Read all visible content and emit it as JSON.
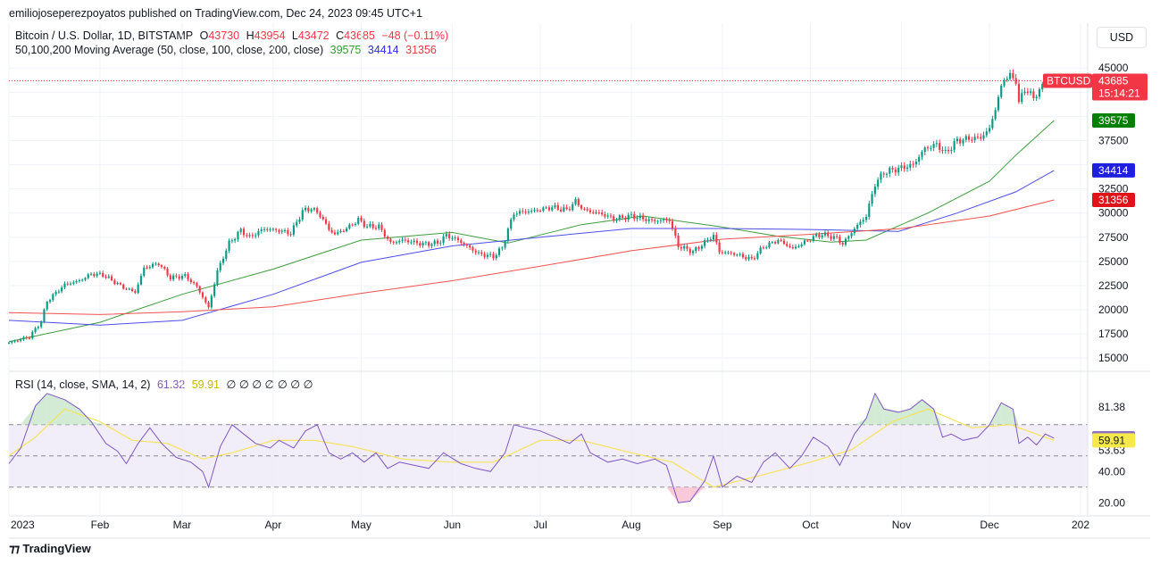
{
  "header": {
    "publisher": "emiliojoseperezpoyatos published on TradingView.com, Dec 24, 2023 09:45 UTC+1"
  },
  "legend": {
    "symbol": "Bitcoin / U.S. Dollar, 1D, BITSTAMP",
    "open_label": "O",
    "open": "43730",
    "high_label": "H",
    "high": "43954",
    "low_label": "L",
    "low": "43472",
    "close_label": "C",
    "close": "43685",
    "change": "−48 (−0.11%)",
    "ma_title": "50,100,200 Moving Average (50, close, 100, close, 200, close)",
    "ma50": "39575",
    "ma100": "34414",
    "ma200": "31356",
    "rsi_title": "RSI (14, close, SMA, 14, 2)",
    "rsi_value": "61.32",
    "rsi_sma": "59.91",
    "na_values": "∅ ∅ ∅ ∅ ∅ ∅ ∅"
  },
  "currency_button": "USD",
  "price_badge": {
    "ticker": "BTCUSD",
    "price": "43685",
    "countdown": "15:14:21"
  },
  "footer": {
    "brand": "TradingView"
  },
  "colors": {
    "up": "#089981",
    "down": "#f23645",
    "ma50": "#3d9c3d",
    "ma100": "#4d4de8",
    "ma200": "#f0534f",
    "rsi": "#7e57c2",
    "rsi_sma": "#f5e35c",
    "rsi_band": "#ede7f6"
  },
  "chart_data": [
    {
      "type": "candlestick",
      "title": "Bitcoin / U.S. Dollar, 1D, BITSTAMP",
      "x_ticks": [
        "2023",
        "Feb",
        "Mar",
        "Apr",
        "May",
        "Jun",
        "Jul",
        "Aug",
        "Sep",
        "Oct",
        "Nov",
        "Dec",
        "202"
      ],
      "y_ticks": [
        "45000",
        "37500",
        "32500",
        "30000",
        "27500",
        "25000",
        "22500",
        "20000",
        "17500",
        "15000"
      ],
      "ylim": [
        14000,
        46500
      ],
      "y_scale": "linear",
      "price_close_path": [
        [
          "2023-01-01",
          16600
        ],
        [
          "2023-01-08",
          17200
        ],
        [
          "2023-01-12",
          18800
        ],
        [
          "2023-01-14",
          20900
        ],
        [
          "2023-01-20",
          22600
        ],
        [
          "2023-01-25",
          23000
        ],
        [
          "2023-01-29",
          23700
        ],
        [
          "2023-02-02",
          23600
        ],
        [
          "2023-02-09",
          22300
        ],
        [
          "2023-02-13",
          21800
        ],
        [
          "2023-02-16",
          24300
        ],
        [
          "2023-02-21",
          24800
        ],
        [
          "2023-02-25",
          23300
        ],
        [
          "2023-03-02",
          23500
        ],
        [
          "2023-03-06",
          22400
        ],
        [
          "2023-03-10",
          20200
        ],
        [
          "2023-03-13",
          24000
        ],
        [
          "2023-03-17",
          26900
        ],
        [
          "2023-03-21",
          28200
        ],
        [
          "2023-03-24",
          27500
        ],
        [
          "2023-03-29",
          28400
        ],
        [
          "2023-04-03",
          28200
        ],
        [
          "2023-04-07",
          27900
        ],
        [
          "2023-04-11",
          30200
        ],
        [
          "2023-04-14",
          30500
        ],
        [
          "2023-04-17",
          29800
        ],
        [
          "2023-04-20",
          28300
        ],
        [
          "2023-04-22",
          27800
        ],
        [
          "2023-04-26",
          28400
        ],
        [
          "2023-04-30",
          29300
        ],
        [
          "2023-05-03",
          28600
        ],
        [
          "2023-05-07",
          28600
        ],
        [
          "2023-05-11",
          26900
        ],
        [
          "2023-05-15",
          27200
        ],
        [
          "2023-05-22",
          26800
        ],
        [
          "2023-05-27",
          26900
        ],
        [
          "2023-05-30",
          27700
        ],
        [
          "2023-06-03",
          27200
        ],
        [
          "2023-06-06",
          26600
        ],
        [
          "2023-06-10",
          25800
        ],
        [
          "2023-06-15",
          25500
        ],
        [
          "2023-06-18",
          26400
        ],
        [
          "2023-06-20",
          28300
        ],
        [
          "2023-06-22",
          30000
        ],
        [
          "2023-06-28",
          30200
        ],
        [
          "2023-07-05",
          30600
        ],
        [
          "2023-07-10",
          30300
        ],
        [
          "2023-07-13",
          31200
        ],
        [
          "2023-07-16",
          30300
        ],
        [
          "2023-07-22",
          29900
        ],
        [
          "2023-07-26",
          29400
        ],
        [
          "2023-08-01",
          29700
        ],
        [
          "2023-08-08",
          29200
        ],
        [
          "2023-08-14",
          29300
        ],
        [
          "2023-08-17",
          26600
        ],
        [
          "2023-08-22",
          26000
        ],
        [
          "2023-08-29",
          27700
        ],
        [
          "2023-08-31",
          26000
        ],
        [
          "2023-09-05",
          25800
        ],
        [
          "2023-09-11",
          25200
        ],
        [
          "2023-09-15",
          26500
        ],
        [
          "2023-09-20",
          27200
        ],
        [
          "2023-09-25",
          26300
        ],
        [
          "2023-09-29",
          27000
        ],
        [
          "2023-10-02",
          27500
        ],
        [
          "2023-10-05",
          27800
        ],
        [
          "2023-10-10",
          27400
        ],
        [
          "2023-10-12",
          26800
        ],
        [
          "2023-10-16",
          28400
        ],
        [
          "2023-10-20",
          29700
        ],
        [
          "2023-10-23",
          33000
        ],
        [
          "2023-10-26",
          34200
        ],
        [
          "2023-10-31",
          34600
        ],
        [
          "2023-11-05",
          35000
        ],
        [
          "2023-11-09",
          36700
        ],
        [
          "2023-11-13",
          37100
        ],
        [
          "2023-11-16",
          36200
        ],
        [
          "2023-11-20",
          37500
        ],
        [
          "2023-11-24",
          37700
        ],
        [
          "2023-11-28",
          37800
        ],
        [
          "2023-12-01",
          38700
        ],
        [
          "2023-12-04",
          41900
        ],
        [
          "2023-12-06",
          44000
        ],
        [
          "2023-12-08",
          44100
        ],
        [
          "2023-12-10",
          43800
        ],
        [
          "2023-12-11",
          41300
        ],
        [
          "2023-12-13",
          42900
        ],
        [
          "2023-12-16",
          41900
        ],
        [
          "2023-12-18",
          42700
        ],
        [
          "2023-12-20",
          43700
        ],
        [
          "2023-12-23",
          43685
        ]
      ],
      "series": [
        {
          "name": "50",
          "values": [
            [
              "2023-01-01",
              16700
            ],
            [
              "2023-02-01",
              18700
            ],
            [
              "2023-03-01",
              21600
            ],
            [
              "2023-04-01",
              24200
            ],
            [
              "2023-05-01",
              27200
            ],
            [
              "2023-06-01",
              28000
            ],
            [
              "2023-06-20",
              26900
            ],
            [
              "2023-07-15",
              28800
            ],
            [
              "2023-08-05",
              29700
            ],
            [
              "2023-08-31",
              28600
            ],
            [
              "2023-09-20",
              27600
            ],
            [
              "2023-10-08",
              27000
            ],
            [
              "2023-10-20",
              27200
            ],
            [
              "2023-11-10",
              30000
            ],
            [
              "2023-12-01",
              33300
            ],
            [
              "2023-12-10",
              36000
            ],
            [
              "2023-12-23",
              39575
            ]
          ]
        },
        {
          "name": "100",
          "values": [
            [
              "2023-01-01",
              18900
            ],
            [
              "2023-02-01",
              18400
            ],
            [
              "2023-03-01",
              18900
            ],
            [
              "2023-04-01",
              21600
            ],
            [
              "2023-05-01",
              24900
            ],
            [
              "2023-06-01",
              26600
            ],
            [
              "2023-07-01",
              27500
            ],
            [
              "2023-08-01",
              28400
            ],
            [
              "2023-09-01",
              28400
            ],
            [
              "2023-10-01",
              28300
            ],
            [
              "2023-10-31",
              28100
            ],
            [
              "2023-11-20",
              30000
            ],
            [
              "2023-12-10",
              32200
            ],
            [
              "2023-12-23",
              34414
            ]
          ]
        },
        {
          "name": "200",
          "values": [
            [
              "2023-01-01",
              19700
            ],
            [
              "2023-02-01",
              19500
            ],
            [
              "2023-03-01",
              19800
            ],
            [
              "2023-04-01",
              20300
            ],
            [
              "2023-05-01",
              21700
            ],
            [
              "2023-06-01",
              23000
            ],
            [
              "2023-07-01",
              24500
            ],
            [
              "2023-08-01",
              26100
            ],
            [
              "2023-09-01",
              27300
            ],
            [
              "2023-10-01",
              27800
            ],
            [
              "2023-11-01",
              28400
            ],
            [
              "2023-12-01",
              29700
            ],
            [
              "2023-12-23",
              31356
            ]
          ]
        }
      ]
    },
    {
      "type": "line",
      "title": "RSI (14, close, SMA, 14, 2)",
      "y_ticks": [
        "81.38",
        "61.32",
        "59.91",
        "53.63",
        "40.00",
        "20.00"
      ],
      "ylim": [
        15,
        95
      ],
      "bands": {
        "upper": 70,
        "middle": 50,
        "lower": 30
      },
      "series": [
        {
          "name": "RSI",
          "values": [
            [
              "2023-01-01",
              45
            ],
            [
              "2023-01-05",
              55
            ],
            [
              "2023-01-10",
              82
            ],
            [
              "2023-01-14",
              90
            ],
            [
              "2023-01-20",
              86
            ],
            [
              "2023-01-25",
              80
            ],
            [
              "2023-01-29",
              72
            ],
            [
              "2023-02-03",
              58
            ],
            [
              "2023-02-07",
              53
            ],
            [
              "2023-02-10",
              45
            ],
            [
              "2023-02-14",
              58
            ],
            [
              "2023-02-18",
              68
            ],
            [
              "2023-02-22",
              58
            ],
            [
              "2023-02-27",
              49
            ],
            [
              "2023-03-04",
              46
            ],
            [
              "2023-03-08",
              40
            ],
            [
              "2023-03-10",
              30
            ],
            [
              "2023-03-14",
              56
            ],
            [
              "2023-03-18",
              70
            ],
            [
              "2023-03-22",
              64
            ],
            [
              "2023-03-26",
              58
            ],
            [
              "2023-03-31",
              55
            ],
            [
              "2023-04-03",
              60
            ],
            [
              "2023-04-08",
              55
            ],
            [
              "2023-04-12",
              66
            ],
            [
              "2023-04-16",
              70
            ],
            [
              "2023-04-20",
              52
            ],
            [
              "2023-04-24",
              48
            ],
            [
              "2023-04-28",
              52
            ],
            [
              "2023-05-02",
              46
            ],
            [
              "2023-05-06",
              52
            ],
            [
              "2023-05-10",
              42
            ],
            [
              "2023-05-14",
              46
            ],
            [
              "2023-05-19",
              44
            ],
            [
              "2023-05-24",
              42
            ],
            [
              "2023-05-29",
              52
            ],
            [
              "2023-06-04",
              45
            ],
            [
              "2023-06-09",
              42
            ],
            [
              "2023-06-14",
              40
            ],
            [
              "2023-06-19",
              52
            ],
            [
              "2023-06-22",
              70
            ],
            [
              "2023-06-26",
              68
            ],
            [
              "2023-07-01",
              66
            ],
            [
              "2023-07-06",
              62
            ],
            [
              "2023-07-11",
              58
            ],
            [
              "2023-07-15",
              64
            ],
            [
              "2023-07-18",
              52
            ],
            [
              "2023-07-24",
              46
            ],
            [
              "2023-07-29",
              48
            ],
            [
              "2023-08-03",
              45
            ],
            [
              "2023-08-09",
              48
            ],
            [
              "2023-08-13",
              44
            ],
            [
              "2023-08-17",
              20
            ],
            [
              "2023-08-21",
              21
            ],
            [
              "2023-08-26",
              34
            ],
            [
              "2023-08-29",
              50
            ],
            [
              "2023-09-01",
              30
            ],
            [
              "2023-09-06",
              37
            ],
            [
              "2023-09-11",
              33
            ],
            [
              "2023-09-15",
              46
            ],
            [
              "2023-09-19",
              52
            ],
            [
              "2023-09-24",
              42
            ],
            [
              "2023-09-28",
              50
            ],
            [
              "2023-10-02",
              62
            ],
            [
              "2023-10-07",
              56
            ],
            [
              "2023-10-11",
              44
            ],
            [
              "2023-10-16",
              64
            ],
            [
              "2023-10-20",
              74
            ],
            [
              "2023-10-23",
              90
            ],
            [
              "2023-10-26",
              80
            ],
            [
              "2023-10-31",
              78
            ],
            [
              "2023-11-04",
              80
            ],
            [
              "2023-11-08",
              86
            ],
            [
              "2023-11-12",
              80
            ],
            [
              "2023-11-15",
              62
            ],
            [
              "2023-11-18",
              64
            ],
            [
              "2023-11-22",
              60
            ],
            [
              "2023-11-27",
              62
            ],
            [
              "2023-12-01",
              70
            ],
            [
              "2023-12-05",
              84
            ],
            [
              "2023-12-09",
              80
            ],
            [
              "2023-12-11",
              58
            ],
            [
              "2023-12-14",
              62
            ],
            [
              "2023-12-17",
              57
            ],
            [
              "2023-12-20",
              64
            ],
            [
              "2023-12-23",
              61.32
            ]
          ]
        },
        {
          "name": "RSI-based MA",
          "values": [
            [
              "2023-01-01",
              50
            ],
            [
              "2023-01-10",
              62
            ],
            [
              "2023-01-20",
              80
            ],
            [
              "2023-02-01",
              72
            ],
            [
              "2023-02-12",
              60
            ],
            [
              "2023-02-24",
              58
            ],
            [
              "2023-03-08",
              48
            ],
            [
              "2023-03-18",
              52
            ],
            [
              "2023-04-01",
              60
            ],
            [
              "2023-04-15",
              60
            ],
            [
              "2023-04-28",
              56
            ],
            [
              "2023-05-15",
              48
            ],
            [
              "2023-06-01",
              46
            ],
            [
              "2023-06-15",
              46
            ],
            [
              "2023-07-01",
              60
            ],
            [
              "2023-07-15",
              60
            ],
            [
              "2023-08-01",
              52
            ],
            [
              "2023-08-15",
              46
            ],
            [
              "2023-08-29",
              30
            ],
            [
              "2023-09-15",
              38
            ],
            [
              "2023-10-01",
              46
            ],
            [
              "2023-10-15",
              54
            ],
            [
              "2023-10-29",
              72
            ],
            [
              "2023-11-10",
              80
            ],
            [
              "2023-11-25",
              68
            ],
            [
              "2023-12-08",
              70
            ],
            [
              "2023-12-23",
              59.91
            ]
          ]
        }
      ]
    }
  ]
}
